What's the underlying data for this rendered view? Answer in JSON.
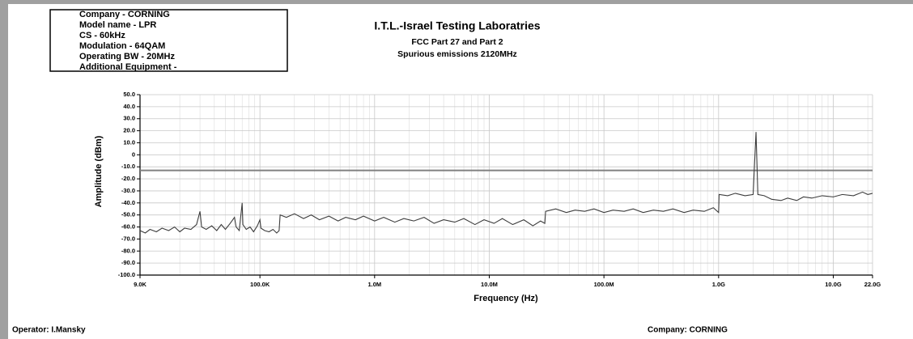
{
  "chart_data": {
    "type": "line",
    "title": "I.T.L.-Israel Testing Laboratries",
    "subtitle": [
      "FCC Part 27 and Part 2",
      "Spurious emissions 2120MHz"
    ],
    "info_box": [
      "Company - CORNING",
      "Model name - LPR",
      "CS - 60kHz",
      "Modulation - 64QAM",
      "Operating BW - 20MHz",
      "Additional Equipment -"
    ],
    "x_label": "Frequency (Hz)",
    "y_label": "Amplitude (dBm)",
    "footer": {
      "operator": "Operator: I.Mansky",
      "company": "Company: CORNING"
    },
    "x_log": true,
    "grid": true,
    "xlim": [
      9000,
      22000000000
    ],
    "ylim": [
      -100,
      50
    ],
    "xticks": [
      {
        "value": 9000,
        "label": "9.0K"
      },
      {
        "value": 100000,
        "label": "100.0K"
      },
      {
        "value": 1000000,
        "label": "1.0M"
      },
      {
        "value": 10000000,
        "label": "10.0M"
      },
      {
        "value": 100000000,
        "label": "100.0M"
      },
      {
        "value": 1000000000,
        "label": "1.0G"
      },
      {
        "value": 10000000000,
        "label": "10.0G"
      },
      {
        "value": 22000000000,
        "label": "22.0G"
      }
    ],
    "yticks": [
      {
        "value": 50,
        "label": "50.0"
      },
      {
        "value": 40,
        "label": "40.0"
      },
      {
        "value": 30,
        "label": "30.0"
      },
      {
        "value": 20,
        "label": "20.0"
      },
      {
        "value": 10,
        "label": "10.0"
      },
      0,
      {
        "value": -10,
        "label": "-10.0"
      },
      {
        "value": -20,
        "label": "-20.0"
      },
      {
        "value": -30,
        "label": "-30.0"
      },
      {
        "value": -40,
        "label": "-40.0"
      },
      {
        "value": -50,
        "label": "-50.0"
      },
      {
        "value": -60,
        "label": "-60.0"
      },
      {
        "value": -70,
        "label": "-70.0"
      },
      {
        "value": -80,
        "label": "-80.0"
      },
      {
        "value": -90,
        "label": "-90.0"
      },
      {
        "value": -100,
        "label": "-100.0"
      }
    ],
    "limit_line": {
      "value": -13,
      "color": "#808080"
    },
    "series": [
      {
        "color": "#3c3c3c",
        "x": [
          9000,
          10000,
          11000,
          12500,
          14000,
          16000,
          18000,
          20000,
          22000,
          25000,
          28000,
          30000,
          31000,
          34000,
          38000,
          42000,
          46000,
          50000,
          55000,
          60000,
          62000,
          66000,
          70000,
          71000,
          76000,
          82000,
          88000,
          95000,
          100000,
          102000,
          110000,
          120000,
          130000,
          140000,
          147000,
          150000,
          170000,
          200000,
          240000,
          280000,
          330000,
          400000,
          480000,
          560000,
          680000,
          800000,
          1000000,
          1200000,
          1500000,
          1800000,
          2200000,
          2700000,
          3300000,
          4000000,
          5000000,
          6000000,
          7500000,
          9000000,
          11000000,
          13000000,
          16000000,
          20000000,
          24000000,
          28000000,
          30500000,
          31000000,
          38000000,
          47000000,
          56000000,
          68000000,
          82000000,
          100000000,
          120000000,
          150000000,
          180000000,
          220000000,
          270000000,
          330000000,
          400000000,
          500000000,
          600000000,
          750000000,
          900000000,
          1000000000,
          1010000000,
          1200000000,
          1400000000,
          1700000000,
          2000000000,
          2120000000,
          2200000000,
          2500000000,
          2900000000,
          3500000000,
          4000000000,
          4800000000,
          5500000000,
          6500000000,
          8000000000,
          10000000000,
          12000000000,
          15000000000,
          18000000000,
          20000000000,
          22000000000
        ],
        "values": [
          -63,
          -65,
          -62,
          -64,
          -61,
          -63,
          -60,
          -64,
          -61,
          -62,
          -58,
          -47,
          -60,
          -62,
          -59,
          -63,
          -58,
          -62,
          -57,
          -52,
          -60,
          -63,
          -40,
          -58,
          -62,
          -60,
          -64,
          -59,
          -54,
          -61,
          -63,
          -64,
          -62,
          -65,
          -63,
          -50,
          -52,
          -49,
          -53,
          -50,
          -54,
          -51,
          -55,
          -52,
          -54,
          -51,
          -55,
          -52,
          -56,
          -53,
          -55,
          -52,
          -57,
          -54,
          -56,
          -53,
          -58,
          -54,
          -57,
          -53,
          -58,
          -54,
          -59,
          -55,
          -57,
          -47,
          -45,
          -48,
          -46,
          -47,
          -45,
          -48,
          -46,
          -47,
          -45,
          -48,
          -46,
          -47,
          -45,
          -48,
          -46,
          -47,
          -44,
          -48,
          -33,
          -34,
          -32,
          -34,
          -33,
          19,
          -33,
          -34,
          -37,
          -38,
          -36,
          -38,
          -35,
          -36,
          -34,
          -35,
          -33,
          -34,
          -31,
          -33,
          -32
        ]
      }
    ]
  }
}
